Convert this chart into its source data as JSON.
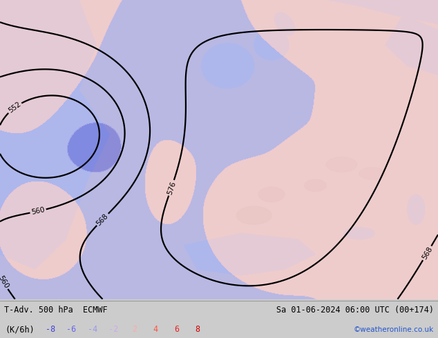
{
  "title_left": "T-Adv. 500 hPa  ECMWF",
  "title_right": "Sa 01-06-2024 06:00 UTC (00+174)",
  "unit_label": "(K/6h)",
  "legend_values": [
    -8,
    -6,
    -4,
    -2,
    2,
    4,
    6,
    8
  ],
  "legend_colors_neg": [
    "#4444dd",
    "#6666ee",
    "#9999ee",
    "#ccaaee"
  ],
  "legend_colors_pos": [
    "#ffbbaa",
    "#ff6644",
    "#ee3322",
    "#cc1100"
  ],
  "credit": "©weatheronline.co.uk",
  "land_color": "#c8e0a0",
  "sea_color": "#a8c8e8",
  "gray_color": "#b0b8b0",
  "bottom_bar_color": "#cccccc",
  "figsize": [
    6.34,
    4.9
  ],
  "dpi": 100
}
